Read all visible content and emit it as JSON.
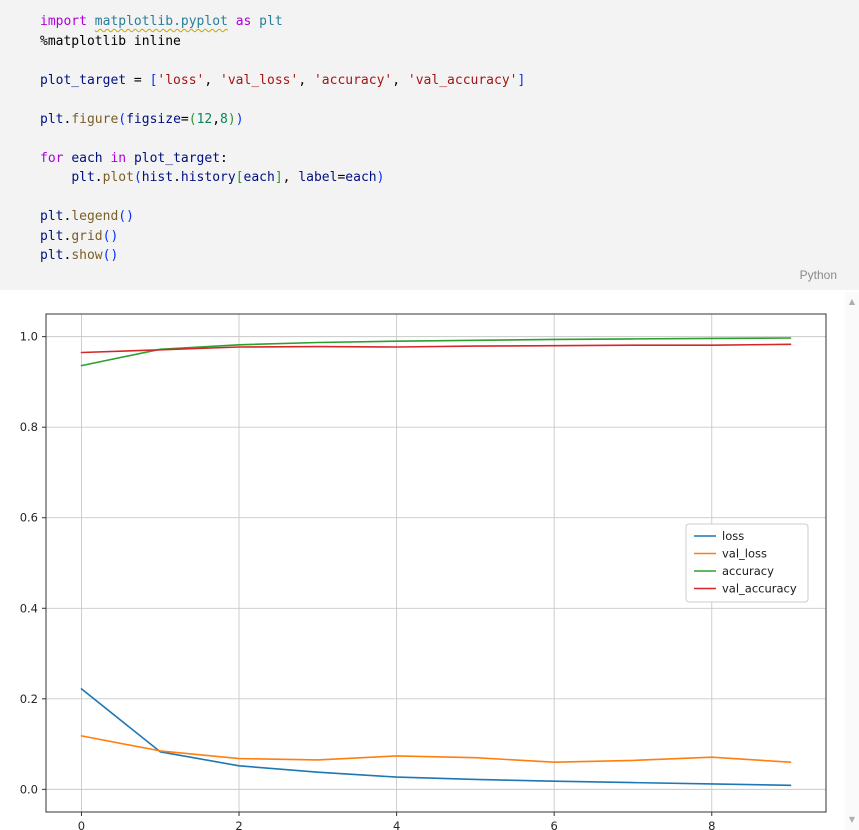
{
  "editor": {
    "language_label": "Python",
    "code_lines": [
      {
        "tokens": [
          {
            "t": "import",
            "c": "kw"
          },
          {
            "t": " ",
            "c": "pl"
          },
          {
            "t": "matplotlib.pyplot",
            "c": "mod sq"
          },
          {
            "t": " ",
            "c": "pl"
          },
          {
            "t": "as",
            "c": "kw"
          },
          {
            "t": " ",
            "c": "pl"
          },
          {
            "t": "plt",
            "c": "mod"
          }
        ]
      },
      {
        "tokens": [
          {
            "t": "%matplotlib inline",
            "c": "pl"
          }
        ]
      },
      {
        "tokens": []
      },
      {
        "tokens": [
          {
            "t": "plot_target",
            "c": "var"
          },
          {
            "t": " = ",
            "c": "pl"
          },
          {
            "t": "[",
            "c": "br1"
          },
          {
            "t": "'loss'",
            "c": "str"
          },
          {
            "t": ", ",
            "c": "pl"
          },
          {
            "t": "'val_loss'",
            "c": "str"
          },
          {
            "t": ", ",
            "c": "pl"
          },
          {
            "t": "'accuracy'",
            "c": "str"
          },
          {
            "t": ", ",
            "c": "pl"
          },
          {
            "t": "'val_accuracy'",
            "c": "str"
          },
          {
            "t": "]",
            "c": "br1"
          }
        ]
      },
      {
        "tokens": []
      },
      {
        "tokens": [
          {
            "t": "plt",
            "c": "var"
          },
          {
            "t": ".",
            "c": "pl"
          },
          {
            "t": "figure",
            "c": "fn"
          },
          {
            "t": "(",
            "c": "br1"
          },
          {
            "t": "figsize",
            "c": "var"
          },
          {
            "t": "=",
            "c": "pl"
          },
          {
            "t": "(",
            "c": "br2"
          },
          {
            "t": "12",
            "c": "num"
          },
          {
            "t": ",",
            "c": "pl"
          },
          {
            "t": "8",
            "c": "num"
          },
          {
            "t": ")",
            "c": "br2"
          },
          {
            "t": ")",
            "c": "br1"
          }
        ]
      },
      {
        "tokens": []
      },
      {
        "tokens": [
          {
            "t": "for",
            "c": "kw"
          },
          {
            "t": " ",
            "c": "pl"
          },
          {
            "t": "each",
            "c": "var"
          },
          {
            "t": " ",
            "c": "pl"
          },
          {
            "t": "in",
            "c": "kw"
          },
          {
            "t": " ",
            "c": "pl"
          },
          {
            "t": "plot_target",
            "c": "var"
          },
          {
            "t": ":",
            "c": "pl"
          }
        ]
      },
      {
        "tokens": [
          {
            "t": "    ",
            "c": "pl"
          },
          {
            "t": "plt",
            "c": "var"
          },
          {
            "t": ".",
            "c": "pl"
          },
          {
            "t": "plot",
            "c": "fn"
          },
          {
            "t": "(",
            "c": "br1"
          },
          {
            "t": "hist",
            "c": "var"
          },
          {
            "t": ".",
            "c": "pl"
          },
          {
            "t": "history",
            "c": "var"
          },
          {
            "t": "[",
            "c": "br2"
          },
          {
            "t": "each",
            "c": "var"
          },
          {
            "t": "]",
            "c": "br2"
          },
          {
            "t": ", ",
            "c": "pl"
          },
          {
            "t": "label",
            "c": "var"
          },
          {
            "t": "=",
            "c": "pl"
          },
          {
            "t": "each",
            "c": "var"
          },
          {
            "t": ")",
            "c": "br1"
          }
        ]
      },
      {
        "tokens": []
      },
      {
        "tokens": [
          {
            "t": "plt",
            "c": "var"
          },
          {
            "t": ".",
            "c": "pl"
          },
          {
            "t": "legend",
            "c": "fn"
          },
          {
            "t": "(",
            "c": "br1"
          },
          {
            "t": ")",
            "c": "br1"
          }
        ]
      },
      {
        "tokens": [
          {
            "t": "plt",
            "c": "var"
          },
          {
            "t": ".",
            "c": "pl"
          },
          {
            "t": "grid",
            "c": "fn"
          },
          {
            "t": "(",
            "c": "br1"
          },
          {
            "t": ")",
            "c": "br1"
          }
        ]
      },
      {
        "tokens": [
          {
            "t": "plt",
            "c": "var"
          },
          {
            "t": ".",
            "c": "pl"
          },
          {
            "t": "show",
            "c": "fn"
          },
          {
            "t": "(",
            "c": "br1"
          },
          {
            "t": ")",
            "c": "br1"
          }
        ]
      }
    ]
  },
  "chart_data": {
    "type": "line",
    "title": "",
    "xlabel": "",
    "ylabel": "",
    "x": [
      0,
      1,
      2,
      3,
      4,
      5,
      6,
      7,
      8,
      9
    ],
    "series": [
      {
        "name": "loss",
        "color": "#1f77b4",
        "values": [
          0.222,
          0.083,
          0.052,
          0.038,
          0.027,
          0.022,
          0.018,
          0.015,
          0.012,
          0.009
        ]
      },
      {
        "name": "val_loss",
        "color": "#ff7f0e",
        "values": [
          0.118,
          0.085,
          0.068,
          0.065,
          0.074,
          0.07,
          0.06,
          0.064,
          0.071,
          0.06
        ]
      },
      {
        "name": "accuracy",
        "color": "#2ca02c",
        "values": [
          0.936,
          0.972,
          0.982,
          0.987,
          0.99,
          0.992,
          0.994,
          0.995,
          0.996,
          0.997
        ]
      },
      {
        "name": "val_accuracy",
        "color": "#d62728",
        "values": [
          0.965,
          0.971,
          0.977,
          0.978,
          0.977,
          0.979,
          0.98,
          0.981,
          0.981,
          0.983
        ]
      }
    ],
    "legend_entries": [
      "loss",
      "val_loss",
      "accuracy",
      "val_accuracy"
    ],
    "legend_position": "center-right",
    "grid": true,
    "xticks": [
      0,
      2,
      4,
      6,
      8
    ],
    "yticks": [
      0.0,
      0.2,
      0.4,
      0.6,
      0.8,
      1.0
    ],
    "xlim": [
      -0.45,
      9.45
    ],
    "ylim": [
      -0.05,
      1.05
    ]
  },
  "scrollbar": {
    "up_glyph": "▲",
    "down_glyph": "▼"
  }
}
